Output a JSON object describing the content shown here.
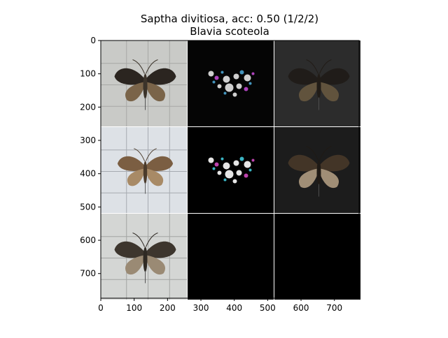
{
  "title": {
    "line1": "Saptha divitiosa, acc: 0.50 (1/2/2)",
    "line2": "Blavia scoteola"
  },
  "axes": {
    "x_ticks": [
      "0",
      "100",
      "200",
      "300",
      "400",
      "500",
      "600",
      "700"
    ],
    "y_ticks": [
      "0",
      "100",
      "200",
      "300",
      "400",
      "500",
      "600",
      "700"
    ]
  },
  "panels": [
    {
      "row": 0,
      "col": 0,
      "kind": "photo",
      "bg": "#c9cac7",
      "grid": "#9a9b98",
      "wing": "#2b2520",
      "wing2": "#7a6449",
      "body": "#3b332a",
      "scale": 1.0
    },
    {
      "row": 0,
      "col": 1,
      "kind": "saliency",
      "bg": "#050505",
      "accent": "#e6e6e6",
      "accent2": "#c04ad0",
      "accent3": "#4aa3d0"
    },
    {
      "row": 0,
      "col": 2,
      "kind": "masked",
      "bg": "#2c2c2c",
      "wing": "#1e1a16",
      "wing2": "#6b5a40"
    },
    {
      "row": 1,
      "col": 0,
      "kind": "photo",
      "bg": "#dde1e6",
      "grid": "#8f949b",
      "wing": "#7b5e42",
      "wing2": "#a88a66",
      "body": "#4b3b2b",
      "scale": 0.9
    },
    {
      "row": 1,
      "col": 1,
      "kind": "saliency",
      "bg": "#000000",
      "accent": "#ffffff",
      "accent2": "#d04ac0",
      "accent3": "#40c8d8"
    },
    {
      "row": 1,
      "col": 2,
      "kind": "masked",
      "bg": "#1c1c1c",
      "wing": "#4a3a2a",
      "wing2": "#b8a286"
    },
    {
      "row": 2,
      "col": 0,
      "kind": "photo",
      "bg": "#d4d6d4",
      "grid": "#8d8f8d",
      "wing": "#3d362e",
      "wing2": "#9a8a74",
      "body": "#2f2a24",
      "scale": 1.0
    },
    {
      "row": 2,
      "col": 1,
      "kind": "empty",
      "bg": "#000000"
    },
    {
      "row": 2,
      "col": 2,
      "kind": "empty",
      "bg": "#000000"
    }
  ]
}
